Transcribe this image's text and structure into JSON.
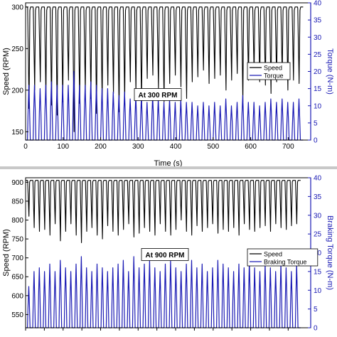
{
  "chart_data": [
    {
      "type": "line",
      "annotation": "At 300 RPM",
      "xlabel": "Time (s)",
      "ylabel_left": "Speed (RPM)",
      "ylabel_right": "Torque (N-m)",
      "xlim": [
        0,
        760
      ],
      "ylim_left": [
        140,
        305
      ],
      "ylim_right": [
        0,
        40
      ],
      "xticks": [
        0,
        100,
        200,
        300,
        400,
        500,
        600,
        700
      ],
      "yticks_left": [
        150,
        200,
        250,
        300
      ],
      "yticks_right": [
        0,
        5,
        10,
        15,
        20,
        25,
        30,
        35,
        40
      ],
      "grid": false,
      "legend_position": "center-right",
      "series": [
        {
          "name": "Speed",
          "axis": "left",
          "color": "#000000",
          "cycles": 49,
          "t_start": 5,
          "period": 15,
          "baseline": 300,
          "dips": [
            178,
            200,
            210,
            192,
            182,
            170,
            186,
            212,
            150,
            184,
            198,
            190,
            172,
            186,
            206,
            196,
            174,
            188,
            210,
            198,
            184,
            214,
            218,
            202,
            186,
            208,
            218,
            204,
            190,
            210,
            216,
            224,
            208,
            214,
            218,
            200,
            212,
            220,
            186,
            212,
            220,
            210,
            206,
            196,
            210,
            216,
            200,
            212,
            208
          ]
        },
        {
          "name": "Torque",
          "axis": "right",
          "color": "#1a1ab4",
          "cycles": 49,
          "t_start": 5,
          "period": 15,
          "baseline": 0,
          "peaks": [
            16,
            16,
            15,
            16,
            17,
            16,
            16,
            16,
            20,
            16,
            16,
            17,
            16,
            15,
            15,
            14,
            13,
            14,
            12,
            13,
            13,
            11,
            13,
            12,
            11,
            12,
            11,
            12,
            11,
            11,
            10,
            11,
            10,
            11,
            10,
            12,
            10,
            11,
            13,
            11,
            11,
            10,
            11,
            12,
            11,
            12,
            11,
            11,
            12
          ]
        }
      ]
    },
    {
      "type": "line",
      "annotation": "At 900 RPM",
      "xlabel": "",
      "ylabel_left": "Speed (RPM)",
      "ylabel_right": "Braking Torque (N-m)",
      "xlim": [
        0,
        760
      ],
      "ylim_left": [
        515,
        912
      ],
      "ylim_right": [
        0,
        40
      ],
      "yticks_left": [
        550,
        600,
        650,
        700,
        750,
        800,
        850,
        900
      ],
      "yticks_right": [
        0,
        5,
        10,
        15,
        20,
        25,
        30,
        35,
        40
      ],
      "grid": false,
      "legend_position": "center-right",
      "series": [
        {
          "name": "Speed",
          "axis": "left",
          "color": "#000000",
          "cycles": 52,
          "t_start": 5,
          "period": 14,
          "baseline": 905,
          "dips": [
            810,
            780,
            770,
            775,
            760,
            790,
            745,
            770,
            790,
            760,
            740,
            770,
            780,
            760,
            750,
            785,
            770,
            760,
            775,
            790,
            755,
            765,
            780,
            770,
            760,
            790,
            770,
            760,
            775,
            800,
            770,
            760,
            785,
            770,
            780,
            790,
            765,
            775,
            770,
            780,
            760,
            790,
            775,
            770,
            780,
            785,
            770,
            790,
            780,
            775,
            785,
            790
          ]
        },
        {
          "name": "Braking Torque",
          "axis": "right",
          "color": "#1a1ab4",
          "cycles": 52,
          "t_start": 5,
          "period": 14,
          "baseline": 0,
          "peaks": [
            11,
            15,
            16,
            15,
            17,
            15,
            18,
            16,
            15,
            17,
            19,
            16,
            15,
            17,
            16,
            15,
            16,
            17,
            18,
            15,
            19,
            16,
            17,
            18,
            16,
            15,
            17,
            18,
            16,
            15,
            17,
            18,
            16,
            17,
            15,
            16,
            18,
            17,
            16,
            15,
            17,
            16,
            18,
            16,
            15,
            17,
            16,
            15,
            17,
            16,
            15,
            17
          ]
        }
      ]
    }
  ]
}
